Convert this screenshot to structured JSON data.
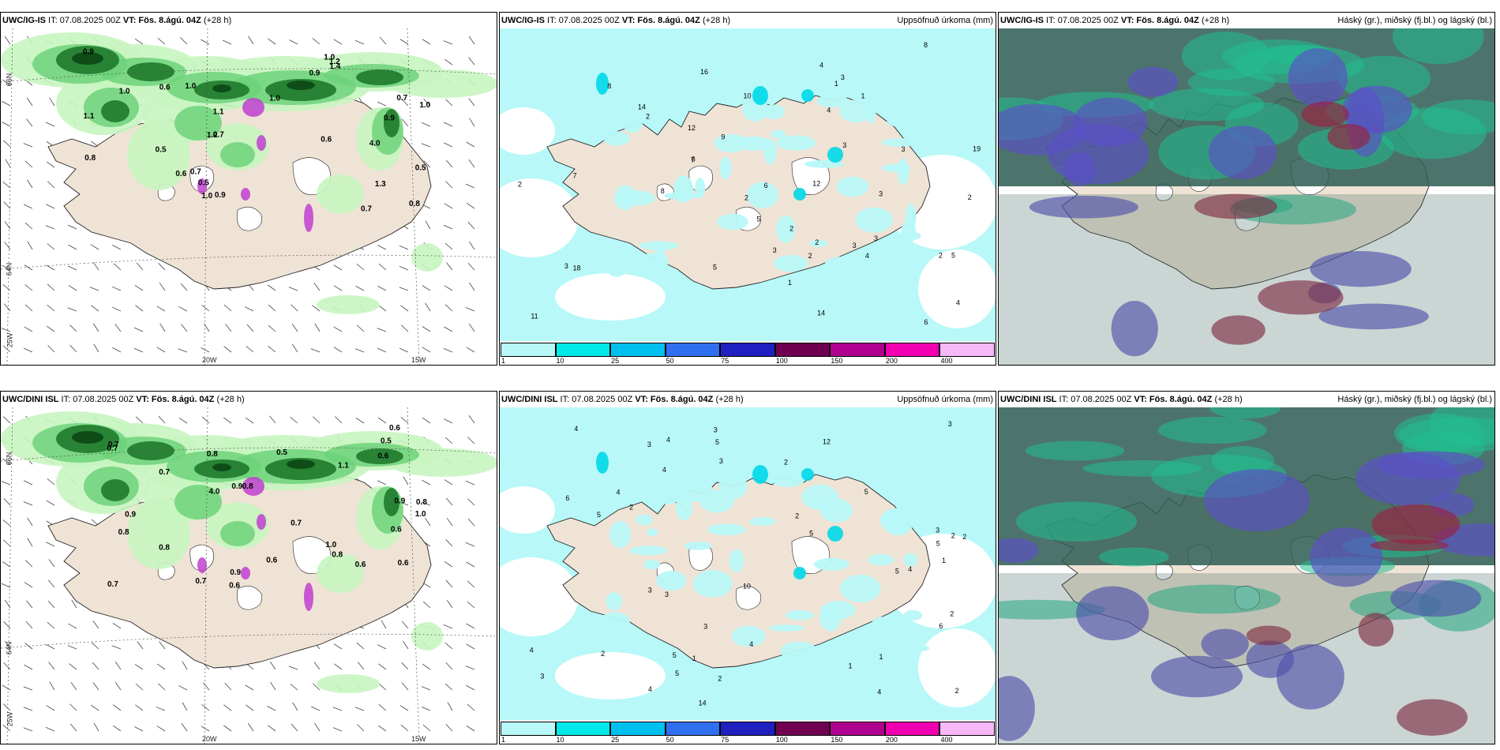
{
  "panels": [
    {
      "model": "UWC/IG-IS",
      "it": "IT: 07.08.2025 00Z",
      "vt": "VT: Fös. 8.ágú. 04Z",
      "lead": "(+28 h)",
      "right": "",
      "kind": "precip-wind"
    },
    {
      "model": "UWC/IG-IS",
      "it": "IT: 07.08.2025 00Z",
      "vt": "VT: Fös. 8.ágú. 04Z",
      "lead": "(+28 h)",
      "right": "Uppsöfnuð úrkoma (mm)",
      "kind": "accum"
    },
    {
      "model": "UWC/IG-IS",
      "it": "IT: 07.08.2025 00Z",
      "vt": "VT: Fös. 8.ágú. 04Z",
      "lead": "(+28 h)",
      "right": "Háský (gr.), miðský (fj.bl.) og lágský (bl.)",
      "kind": "cloud"
    },
    {
      "model": "UWC/DINI ISL",
      "it": "IT: 07.08.2025 00Z",
      "vt": "VT: Fös. 8.ágú. 04Z",
      "lead": "(+28 h)",
      "right": "",
      "kind": "precip-wind"
    },
    {
      "model": "UWC/DINI ISL",
      "it": "IT: 07.08.2025 00Z",
      "vt": "VT: Fös. 8.ágú. 04Z",
      "lead": "(+28 h)",
      "right": "Uppsöfnuð úrkoma (mm)",
      "kind": "accum"
    },
    {
      "model": "UWC/DINI ISL",
      "it": "IT: 07.08.2025 00Z",
      "vt": "VT: Fös. 8.ágú. 04Z",
      "lead": "(+28 h)",
      "right": "Háský (gr.), miðský (fj.bl.) og lágský (bl.)",
      "kind": "cloud"
    }
  ],
  "gridlabels": {
    "lat66": "66N",
    "lat64": "64N",
    "lon25": "25W",
    "lon20": "20W",
    "lon15": "15W"
  },
  "colorbar": {
    "ticks": [
      "1",
      "10",
      "25",
      "50",
      "75",
      "100",
      "150",
      "200",
      "400"
    ],
    "colors": [
      "#b8f8f8",
      "#00e8e8",
      "#00c0f0",
      "#3070f0",
      "#2020c0",
      "#700050",
      "#b00090",
      "#f000b0",
      "#f8b8f8"
    ]
  },
  "colors": {
    "land": "#efe3d6",
    "precip_light": "#c8f5c0",
    "precip_mid": "#6dd27a",
    "precip_heavy": "#1f7a2c",
    "precip_dark": "#0d4a16",
    "precip_magenta": "#c040d0",
    "accum_light": "#b8f8f8",
    "accum_mid": "#00d8e8",
    "cloud_high": "#2e5c52",
    "cloud_mid": "#20c090",
    "cloud_low": "#5a50c8",
    "cloud_red": "#9a2040"
  },
  "precip_labels": [
    {
      "panel": 0,
      "items": [
        "0.9",
        "0.6",
        "1.1",
        "4.0",
        "0.6",
        "0.9",
        "1.4",
        "1.0",
        "0.7",
        "0.8",
        "0.5",
        "1.2",
        "1.0",
        "1.1",
        "0.6",
        "0.7",
        "0.8",
        "0.9",
        "1.0",
        "1.2",
        "0.5",
        "1.0",
        "1.0",
        "0.7",
        "0.9",
        "0.5",
        "1.3",
        "0.7",
        "1.0"
      ]
    },
    {
      "panel": 3,
      "items": [
        "0.6",
        "0.6",
        "4.0",
        "0.7",
        "0.8",
        "0.6",
        "0.7",
        "0.8",
        "0.9",
        "1.0",
        "0.9",
        "0.5",
        "1.1",
        "0.8",
        "0.6",
        "0.6",
        "0.7",
        "0.5",
        "0.9",
        "1.0",
        "0.8",
        "0.6",
        "0.7",
        "0.7",
        "0.9",
        "0.8",
        "0.6",
        "0.7",
        "0.8"
      ]
    }
  ],
  "accum_labels": [
    {
      "panel": 1,
      "items": [
        "2",
        "3",
        "5",
        "2",
        "4",
        "1",
        "6",
        "9",
        "14",
        "10",
        "18",
        "19",
        "12",
        "7",
        "3",
        "4",
        "3",
        "8",
        "2",
        "5",
        "4",
        "3",
        "16",
        "12",
        "6",
        "11",
        "8",
        "14",
        "2",
        "3",
        "1",
        "2",
        "3",
        "2",
        "8",
        "7",
        "5",
        "3",
        "2",
        "1",
        "3",
        "4",
        "6",
        "2"
      ]
    },
    {
      "panel": 4,
      "items": [
        "4",
        "4",
        "3",
        "2",
        "3",
        "5",
        "4",
        "10",
        "12",
        "5",
        "14",
        "5",
        "3",
        "2",
        "4",
        "6",
        "4",
        "5",
        "2",
        "1",
        "3",
        "4",
        "5",
        "3",
        "2",
        "2",
        "1",
        "5",
        "3",
        "4",
        "2",
        "1",
        "2",
        "3",
        "4",
        "5",
        "2",
        "6",
        "4",
        "3",
        "2",
        "1",
        "5",
        "3"
      ]
    }
  ]
}
